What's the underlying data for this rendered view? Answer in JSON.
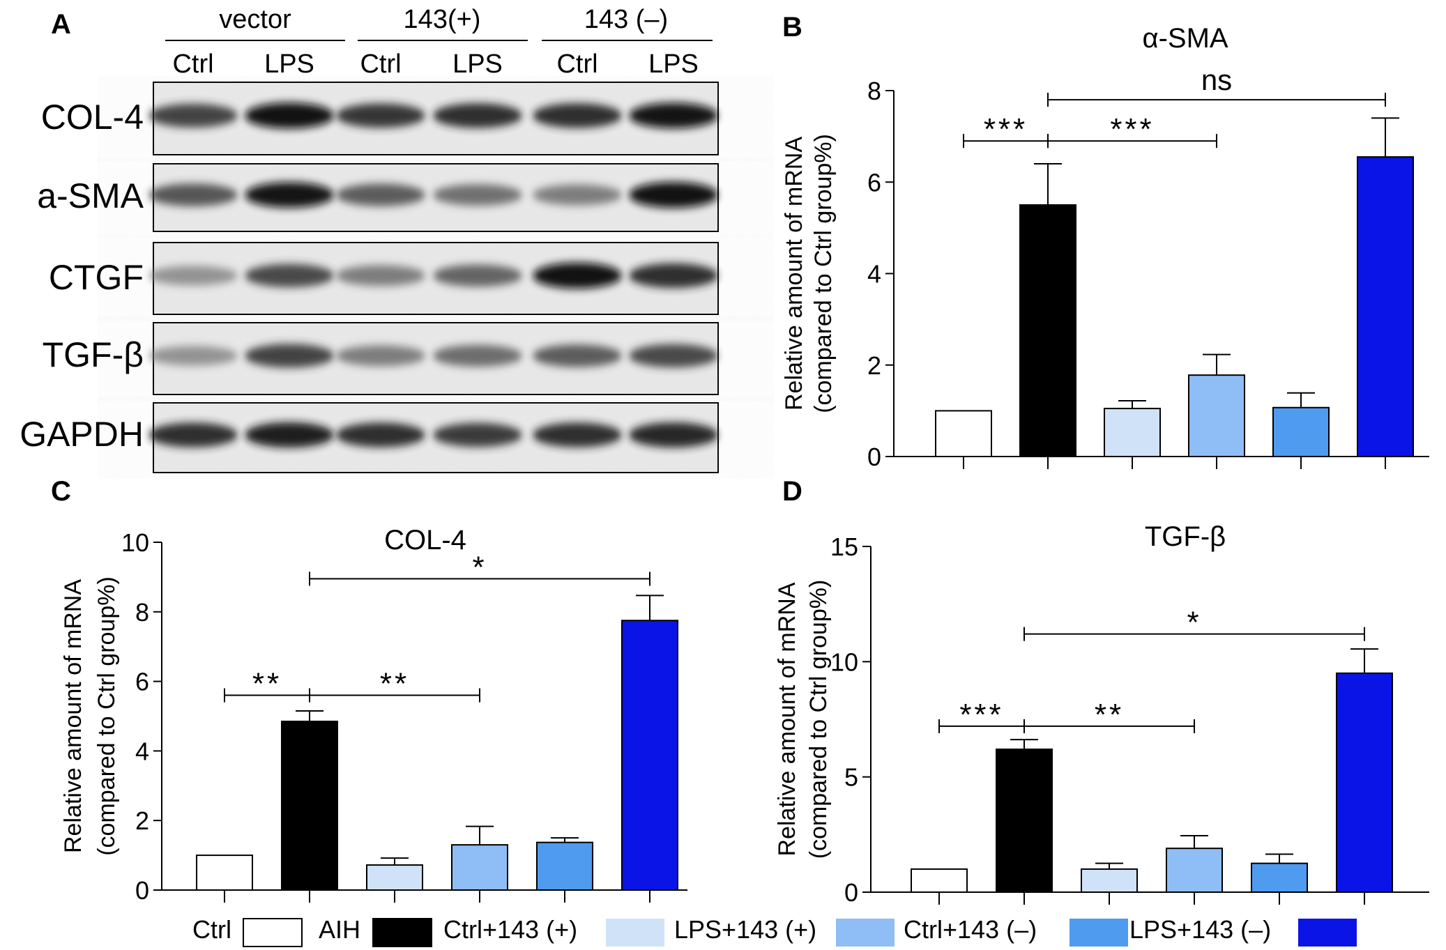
{
  "panel_letters": [
    "A",
    "B",
    "C",
    "D"
  ],
  "blot": {
    "groups": [
      {
        "label": "vector",
        "lanes": [
          "Ctrl",
          "LPS"
        ]
      },
      {
        "label": "143(+)",
        "lanes": [
          "Ctrl",
          "LPS"
        ]
      },
      {
        "label": "143 (–)",
        "lanes": [
          "Ctrl",
          "LPS"
        ]
      }
    ],
    "rows": [
      {
        "label": "COL-4",
        "intensity": [
          0.78,
          0.95,
          0.82,
          0.85,
          0.85,
          0.92
        ]
      },
      {
        "label": "a-SMA",
        "intensity": [
          0.7,
          0.92,
          0.68,
          0.6,
          0.55,
          0.95
        ]
      },
      {
        "label": "CTGF",
        "intensity": [
          0.45,
          0.75,
          0.55,
          0.65,
          0.95,
          0.85
        ]
      },
      {
        "label": "TGF-β",
        "intensity": [
          0.45,
          0.78,
          0.55,
          0.62,
          0.68,
          0.75
        ]
      },
      {
        "label": "GAPDH",
        "intensity": [
          0.85,
          0.9,
          0.85,
          0.8,
          0.85,
          0.88
        ]
      }
    ]
  },
  "legend": [
    {
      "label": "Ctrl",
      "color": "#ffffff"
    },
    {
      "label": "AIH",
      "color": "#000000"
    },
    {
      "label": "Ctrl+143 (+)",
      "color": "#cfe2f8"
    },
    {
      "label": "LPS+143 (+)",
      "color": "#8fbdf5"
    },
    {
      "label": "Ctrl+143 (–)",
      "color": "#4f9bf0"
    },
    {
      "label": "LPS+143 (–)",
      "color": "#0a14e6"
    }
  ],
  "chart_data": [
    {
      "panel": "B",
      "type": "bar",
      "title": "α-SMA",
      "ylabel_line1": "Relative amount of mRNA",
      "ylabel_line2": "(compared to Ctrl group%)",
      "categories": [
        "Ctrl",
        "AIH",
        "Ctrl+143 (+)",
        "LPS+143 (+)",
        "Ctrl+143 (–)",
        "LPS+143 (–)"
      ],
      "values": [
        1.0,
        5.5,
        1.05,
        1.78,
        1.07,
        6.55
      ],
      "errors": [
        0,
        0.9,
        0.17,
        0.45,
        0.32,
        0.85
      ],
      "ylim": [
        0,
        8
      ],
      "yticks": [
        "0",
        "2",
        "4",
        "6",
        "8"
      ],
      "comparisons": [
        {
          "from": 0,
          "to": 1,
          "label": "***",
          "y": 6.9
        },
        {
          "from": 1,
          "to": 3,
          "label": "***",
          "y": 6.9
        },
        {
          "from": 1,
          "to": 5,
          "label": "ns",
          "y": 7.8
        }
      ]
    },
    {
      "panel": "C",
      "type": "bar",
      "title": "COL-4",
      "ylabel_line1": "Relative amount of mRNA",
      "ylabel_line2": "(compared to Ctrl group%)",
      "categories": [
        "Ctrl",
        "AIH",
        "Ctrl+143 (+)",
        "LPS+143 (+)",
        "Ctrl+143 (–)",
        "LPS+143 (–)"
      ],
      "values": [
        1.0,
        4.85,
        0.72,
        1.3,
        1.37,
        7.75
      ],
      "errors": [
        0,
        0.3,
        0.2,
        0.53,
        0.13,
        0.72
      ],
      "ylim": [
        0,
        10
      ],
      "yticks": [
        "0",
        "2",
        "4",
        "6",
        "8",
        "10"
      ],
      "comparisons": [
        {
          "from": 0,
          "to": 1,
          "label": "**",
          "y": 5.6
        },
        {
          "from": 1,
          "to": 3,
          "label": "**",
          "y": 5.6
        },
        {
          "from": 1,
          "to": 5,
          "label": "*",
          "y": 8.95
        }
      ]
    },
    {
      "panel": "D",
      "type": "bar",
      "title": "TGF-β",
      "ylabel_line1": "Relative amount of mRNA",
      "ylabel_line2": "(compared to Ctrl group%)",
      "categories": [
        "Ctrl",
        "AIH",
        "Ctrl+143 (+)",
        "LPS+143 (+)",
        "Ctrl+143 (–)",
        "LPS+143 (–)"
      ],
      "values": [
        1.0,
        6.2,
        1.0,
        1.9,
        1.25,
        9.5
      ],
      "errors": [
        0,
        0.42,
        0.25,
        0.55,
        0.4,
        1.05
      ],
      "ylim": [
        0,
        15
      ],
      "yticks": [
        "0",
        "5",
        "10",
        "15"
      ],
      "comparisons": [
        {
          "from": 0,
          "to": 1,
          "label": "***",
          "y": 7.2
        },
        {
          "from": 1,
          "to": 3,
          "label": "**",
          "y": 7.2
        },
        {
          "from": 1,
          "to": 5,
          "label": "*",
          "y": 11.2
        }
      ]
    }
  ]
}
